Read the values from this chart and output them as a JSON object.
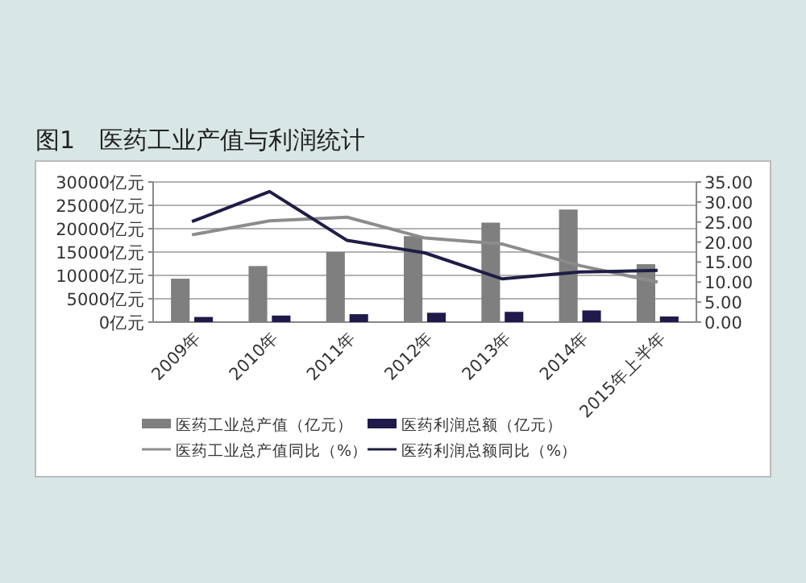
{
  "chart_data": {
    "type": "bar",
    "title": "图1　医药工业产值与利润统计",
    "categories": [
      "2009年",
      "2010年",
      "2011年",
      "2012年",
      "2013年",
      "2014年",
      "2015年上半年"
    ],
    "series": [
      {
        "name": "医药工业总产值（亿元）",
        "color": "#7f7f7f",
        "values": [
          9300,
          12000,
          15000,
          18400,
          21300,
          24100,
          12400
        ]
      },
      {
        "name": "医药利润总额（亿元）",
        "color": "#1f1a4a",
        "values": [
          1100,
          1400,
          1700,
          2000,
          2200,
          2500,
          1200
        ]
      },
      {
        "name": "医药工业总产值同比（%）",
        "type": "line",
        "axis": "y2",
        "color": "#8c8c8c",
        "values": [
          21.8,
          25.3,
          26.2,
          21.0,
          19.5,
          14.1,
          10.0
        ]
      },
      {
        "name": "医药利润总额同比（%）",
        "type": "line",
        "axis": "y2",
        "color": "#1f1d45",
        "values": [
          25.1,
          32.6,
          20.4,
          17.3,
          10.8,
          12.5,
          12.9
        ]
      }
    ],
    "ylim": [
      0,
      30000
    ],
    "yticks": [
      {
        "value": 0,
        "label": "0亿元"
      },
      {
        "value": 5000,
        "label": "5000亿元"
      },
      {
        "value": 10000,
        "label": "10000亿元"
      },
      {
        "value": 15000,
        "label": "15000亿元"
      },
      {
        "value": 20000,
        "label": "20000亿元"
      },
      {
        "value": 25000,
        "label": "25000亿元"
      },
      {
        "value": 30000,
        "label": "30000亿元"
      }
    ],
    "y2lim": [
      0,
      35
    ],
    "y2ticks": [
      {
        "value": 0,
        "label": "0.00"
      },
      {
        "value": 5,
        "label": "5.00"
      },
      {
        "value": 10,
        "label": "10.00"
      },
      {
        "value": 15,
        "label": "15.00"
      },
      {
        "value": 20,
        "label": "20.00"
      },
      {
        "value": 25,
        "label": "25.00"
      },
      {
        "value": 30,
        "label": "30.00"
      },
      {
        "value": 35,
        "label": "35.00"
      }
    ],
    "grid": "y",
    "legend": "bottom"
  }
}
